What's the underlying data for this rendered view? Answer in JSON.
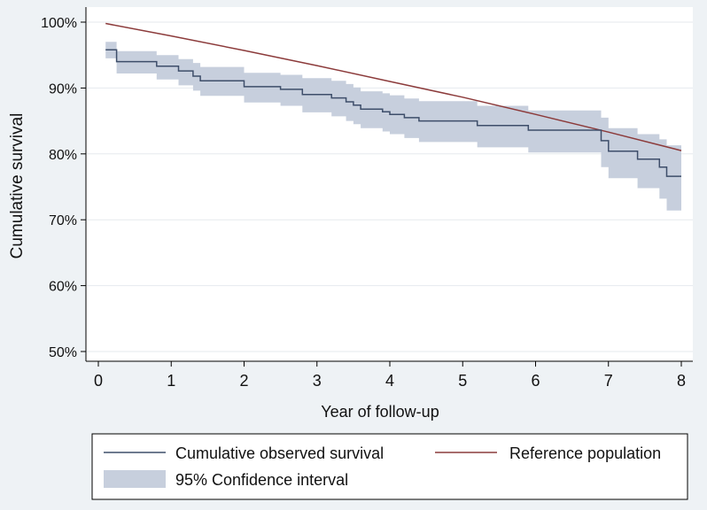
{
  "chart_data": {
    "type": "line",
    "title": "",
    "xlabel": "Year of follow-up",
    "ylabel": "Cumulative survival",
    "xlim": [
      0,
      8
    ],
    "ylim": [
      50,
      100
    ],
    "x_ticks": [
      0,
      1,
      2,
      3,
      4,
      5,
      6,
      7,
      8
    ],
    "x_tick_labels": [
      "0",
      "1",
      "2",
      "3",
      "4",
      "5",
      "6",
      "7",
      "8"
    ],
    "y_ticks": [
      50,
      60,
      70,
      80,
      90,
      100
    ],
    "y_tick_labels": [
      "50%",
      "60%",
      "70%",
      "80%",
      "90%",
      "100%"
    ],
    "grid": true,
    "legend_position": "bottom",
    "colors": {
      "observed": "#3e4e6a",
      "reference": "#8c3b3b",
      "ci_fill": "#c7cfdd",
      "grid": "#e6eaee",
      "axis": "#000000",
      "background": "#eef2f5",
      "plot_background": "#ffffff"
    },
    "series": [
      {
        "name": "Cumulative observed survival",
        "style": "step",
        "x": [
          0.1,
          0.25,
          0.6,
          0.8,
          1.0,
          1.1,
          1.3,
          1.4,
          1.8,
          2.0,
          2.5,
          2.8,
          3.2,
          3.4,
          3.5,
          3.6,
          3.8,
          3.9,
          4.0,
          4.1,
          4.2,
          4.4,
          5.2,
          5.7,
          5.9,
          6.85,
          6.9,
          7.0,
          7.2,
          7.4,
          7.6,
          7.7,
          7.8,
          8.0
        ],
        "y": [
          95.8,
          94.0,
          94.0,
          93.3,
          93.3,
          92.6,
          91.8,
          91.1,
          91.1,
          90.2,
          89.8,
          89.0,
          88.5,
          87.9,
          87.4,
          86.8,
          86.8,
          86.4,
          86.0,
          86.0,
          85.5,
          85.0,
          84.3,
          84.3,
          83.6,
          83.6,
          82.0,
          80.4,
          80.4,
          79.2,
          79.2,
          78.0,
          76.6,
          76.6
        ]
      },
      {
        "name": "Reference population",
        "style": "line",
        "x": [
          0.1,
          1,
          2,
          3,
          4,
          5,
          6,
          7,
          8
        ],
        "y": [
          99.8,
          97.9,
          95.7,
          93.4,
          91.0,
          88.6,
          86.0,
          83.3,
          80.5
        ]
      },
      {
        "name": "95% Confidence interval",
        "style": "band",
        "x": [
          0.1,
          0.25,
          0.6,
          0.8,
          1.0,
          1.1,
          1.3,
          1.4,
          1.8,
          2.0,
          2.5,
          2.8,
          3.2,
          3.4,
          3.5,
          3.6,
          3.8,
          3.9,
          4.0,
          4.1,
          4.2,
          4.4,
          5.2,
          5.7,
          5.9,
          6.85,
          6.9,
          7.0,
          7.2,
          7.4,
          7.6,
          7.7,
          7.8,
          8.0
        ],
        "lower": [
          94.5,
          92.2,
          92.2,
          91.3,
          91.3,
          90.4,
          89.6,
          88.8,
          88.8,
          87.8,
          87.3,
          86.3,
          85.7,
          85.0,
          84.5,
          83.9,
          83.9,
          83.4,
          83.0,
          83.0,
          82.4,
          81.8,
          81.0,
          81.0,
          80.2,
          80.2,
          78.0,
          76.3,
          76.3,
          74.8,
          74.8,
          73.2,
          71.4,
          71.4
        ],
        "upper": [
          97.0,
          95.6,
          95.6,
          95.0,
          95.0,
          94.4,
          93.8,
          93.2,
          93.2,
          92.3,
          92.0,
          91.5,
          91.1,
          90.6,
          90.1,
          89.5,
          89.5,
          89.2,
          88.9,
          88.9,
          88.4,
          88.0,
          87.3,
          87.3,
          86.6,
          86.6,
          85.5,
          83.9,
          83.9,
          83.0,
          83.0,
          82.2,
          81.3,
          81.3
        ]
      }
    ],
    "legend": {
      "observed_label": "Cumulative observed survival",
      "reference_label": "Reference population",
      "ci_label": "95% Confidence interval"
    }
  }
}
